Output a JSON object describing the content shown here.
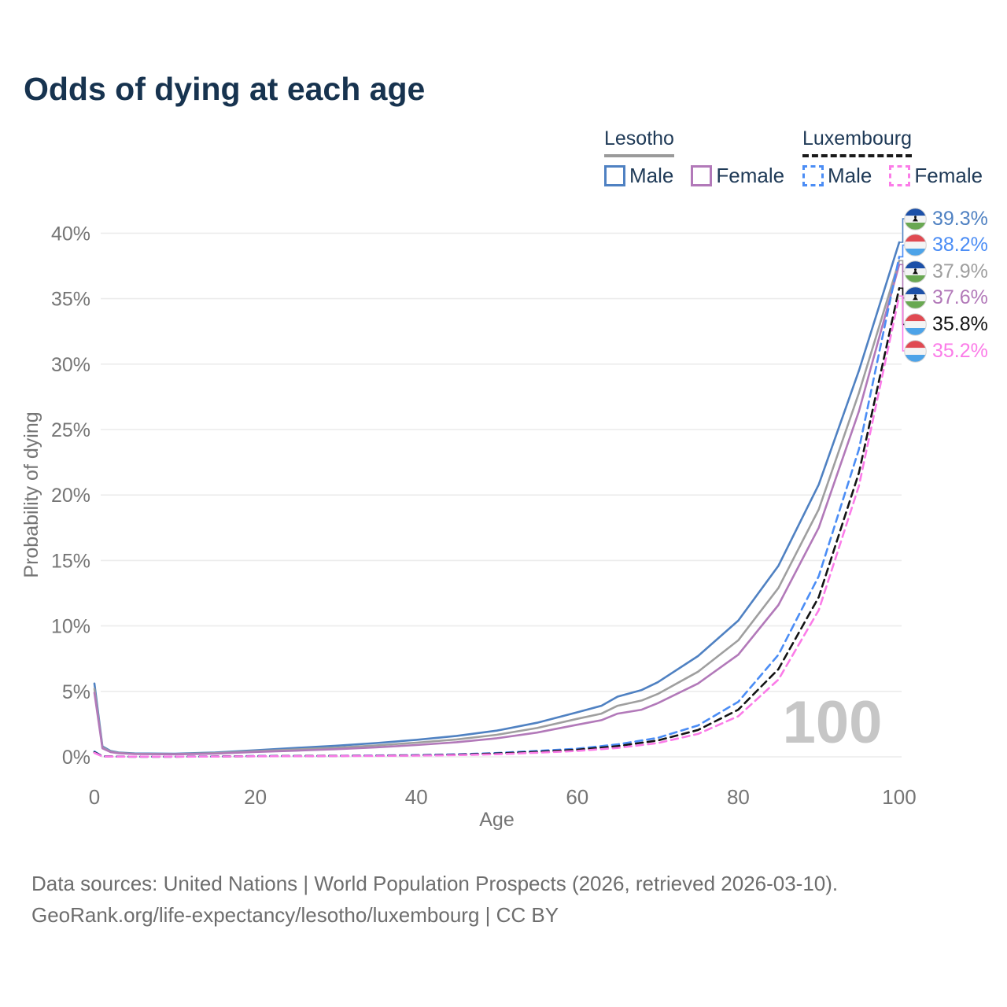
{
  "title": "Odds of dying at each age",
  "legend": {
    "groups": [
      {
        "title": "Lesotho",
        "line_style": "solid",
        "items": [
          {
            "label": "Male",
            "color_key": "lesotho_male"
          },
          {
            "label": "Female",
            "color_key": "lesotho_female"
          }
        ]
      },
      {
        "title": "Luxembourg",
        "line_style": "dashed",
        "items": [
          {
            "label": "Male",
            "color_key": "luxembourg_male"
          },
          {
            "label": "Female",
            "color_key": "luxembourg_female"
          }
        ]
      }
    ]
  },
  "chart_data": {
    "type": "line",
    "title": "Odds of dying at each age",
    "xlabel": "Age",
    "ylabel": "Probability of dying",
    "xlim": [
      0,
      100
    ],
    "ylim": [
      0,
      40
    ],
    "x_ticks": [
      0,
      20,
      40,
      60,
      80,
      100
    ],
    "y_ticks": [
      "0%",
      "5%",
      "10%",
      "15%",
      "20%",
      "25%",
      "30%",
      "35%",
      "40%"
    ],
    "grid": true,
    "legend_position": "top-right",
    "watermark": "100",
    "series": [
      {
        "name": "Lesotho Male",
        "country": "Lesotho",
        "sex": "Male",
        "color": "#4f81c2",
        "dash": false,
        "points": [
          [
            0,
            5.6
          ],
          [
            1,
            0.8
          ],
          [
            2,
            0.45
          ],
          [
            3,
            0.33
          ],
          [
            5,
            0.26
          ],
          [
            10,
            0.24
          ],
          [
            15,
            0.33
          ],
          [
            20,
            0.5
          ],
          [
            25,
            0.68
          ],
          [
            30,
            0.85
          ],
          [
            35,
            1.05
          ],
          [
            40,
            1.3
          ],
          [
            45,
            1.6
          ],
          [
            50,
            2.0
          ],
          [
            55,
            2.6
          ],
          [
            60,
            3.4
          ],
          [
            63,
            3.9
          ],
          [
            65,
            4.6
          ],
          [
            68,
            5.1
          ],
          [
            70,
            5.7
          ],
          [
            75,
            7.7
          ],
          [
            80,
            10.4
          ],
          [
            85,
            14.6
          ],
          [
            90,
            20.8
          ],
          [
            95,
            29.5
          ],
          [
            100,
            39.3
          ]
        ]
      },
      {
        "name": "Lesotho Both sexes",
        "country": "Lesotho",
        "sex": "Both sexes",
        "color": "#9f9f9f",
        "dash": false,
        "points": [
          [
            0,
            5.2
          ],
          [
            1,
            0.72
          ],
          [
            2,
            0.4
          ],
          [
            3,
            0.3
          ],
          [
            5,
            0.23
          ],
          [
            10,
            0.21
          ],
          [
            15,
            0.28
          ],
          [
            20,
            0.43
          ],
          [
            25,
            0.56
          ],
          [
            30,
            0.7
          ],
          [
            35,
            0.87
          ],
          [
            40,
            1.08
          ],
          [
            45,
            1.33
          ],
          [
            50,
            1.68
          ],
          [
            55,
            2.2
          ],
          [
            60,
            2.9
          ],
          [
            63,
            3.3
          ],
          [
            65,
            3.9
          ],
          [
            68,
            4.3
          ],
          [
            70,
            4.8
          ],
          [
            75,
            6.5
          ],
          [
            80,
            8.9
          ],
          [
            85,
            12.9
          ],
          [
            90,
            18.9
          ],
          [
            95,
            27.8
          ],
          [
            100,
            37.9
          ]
        ]
      },
      {
        "name": "Lesotho Female",
        "country": "Lesotho",
        "sex": "Female",
        "color": "#b279b9",
        "dash": false,
        "points": [
          [
            0,
            4.9
          ],
          [
            1,
            0.65
          ],
          [
            2,
            0.36
          ],
          [
            3,
            0.27
          ],
          [
            5,
            0.21
          ],
          [
            10,
            0.19
          ],
          [
            15,
            0.24
          ],
          [
            20,
            0.37
          ],
          [
            25,
            0.47
          ],
          [
            30,
            0.58
          ],
          [
            35,
            0.73
          ],
          [
            40,
            0.9
          ],
          [
            45,
            1.12
          ],
          [
            50,
            1.42
          ],
          [
            55,
            1.85
          ],
          [
            60,
            2.45
          ],
          [
            63,
            2.8
          ],
          [
            65,
            3.3
          ],
          [
            68,
            3.6
          ],
          [
            70,
            4.1
          ],
          [
            75,
            5.6
          ],
          [
            80,
            7.8
          ],
          [
            85,
            11.6
          ],
          [
            90,
            17.5
          ],
          [
            95,
            26.4
          ],
          [
            100,
            37.6
          ]
        ]
      },
      {
        "name": "Luxembourg Male",
        "country": "Luxembourg",
        "sex": "Male",
        "color": "#4b8df5",
        "dash": true,
        "points": [
          [
            0,
            0.4
          ],
          [
            1,
            0.04
          ],
          [
            3,
            0.02
          ],
          [
            5,
            0.015
          ],
          [
            10,
            0.015
          ],
          [
            15,
            0.03
          ],
          [
            20,
            0.06
          ],
          [
            25,
            0.07
          ],
          [
            30,
            0.08
          ],
          [
            35,
            0.1
          ],
          [
            40,
            0.13
          ],
          [
            45,
            0.19
          ],
          [
            50,
            0.29
          ],
          [
            55,
            0.45
          ],
          [
            60,
            0.62
          ],
          [
            65,
            0.95
          ],
          [
            70,
            1.45
          ],
          [
            75,
            2.4
          ],
          [
            80,
            4.2
          ],
          [
            85,
            7.8
          ],
          [
            90,
            13.8
          ],
          [
            95,
            23.5
          ],
          [
            100,
            38.2
          ]
        ]
      },
      {
        "name": "Luxembourg Both sexes",
        "country": "Luxembourg",
        "sex": "Both sexes",
        "color": "#141414",
        "dash": true,
        "points": [
          [
            0,
            0.35
          ],
          [
            1,
            0.035
          ],
          [
            3,
            0.02
          ],
          [
            5,
            0.012
          ],
          [
            10,
            0.012
          ],
          [
            15,
            0.025
          ],
          [
            20,
            0.05
          ],
          [
            25,
            0.06
          ],
          [
            30,
            0.07
          ],
          [
            35,
            0.085
          ],
          [
            40,
            0.11
          ],
          [
            45,
            0.16
          ],
          [
            50,
            0.25
          ],
          [
            55,
            0.38
          ],
          [
            60,
            0.54
          ],
          [
            65,
            0.82
          ],
          [
            70,
            1.25
          ],
          [
            75,
            2.05
          ],
          [
            80,
            3.6
          ],
          [
            85,
            6.7
          ],
          [
            90,
            12.2
          ],
          [
            95,
            21.7
          ],
          [
            100,
            35.8
          ]
        ]
      },
      {
        "name": "Luxembourg Female",
        "country": "Luxembourg",
        "sex": "Female",
        "color": "#fb7ce8",
        "dash": true,
        "points": [
          [
            0,
            0.3
          ],
          [
            1,
            0.03
          ],
          [
            3,
            0.015
          ],
          [
            5,
            0.01
          ],
          [
            10,
            0.01
          ],
          [
            15,
            0.02
          ],
          [
            20,
            0.04
          ],
          [
            25,
            0.05
          ],
          [
            30,
            0.06
          ],
          [
            35,
            0.07
          ],
          [
            40,
            0.09
          ],
          [
            45,
            0.13
          ],
          [
            50,
            0.2
          ],
          [
            55,
            0.31
          ],
          [
            60,
            0.45
          ],
          [
            65,
            0.68
          ],
          [
            70,
            1.05
          ],
          [
            75,
            1.75
          ],
          [
            80,
            3.1
          ],
          [
            85,
            5.9
          ],
          [
            90,
            11.2
          ],
          [
            95,
            20.7
          ],
          [
            100,
            35.2
          ]
        ]
      }
    ],
    "end_labels": [
      {
        "value": "39.3%",
        "series": "Lesotho Male",
        "flag": "lesotho",
        "color": "#4f81c2"
      },
      {
        "value": "38.2%",
        "series": "Luxembourg Male",
        "flag": "luxembourg",
        "color": "#4b8df5"
      },
      {
        "value": "37.9%",
        "series": "Lesotho Both sexes",
        "flag": "lesotho",
        "color": "#9f9f9f"
      },
      {
        "value": "37.6%",
        "series": "Lesotho Female",
        "flag": "lesotho",
        "color": "#b279b9"
      },
      {
        "value": "35.8%",
        "series": "Luxembourg Both sexes",
        "flag": "luxembourg",
        "color": "#141414"
      },
      {
        "value": "35.2%",
        "series": "Luxembourg Female",
        "flag": "luxembourg",
        "color": "#fb7ce8"
      }
    ]
  },
  "colors": {
    "title_text": "#17334f",
    "legend_text": "#1f3a57",
    "axis_text": "#757575",
    "grid": "#ececec",
    "watermark": "#c6c6c6",
    "footer_text": "#6d6d6d",
    "lesotho_male": "#4f81c2",
    "lesotho_female": "#b279b9",
    "lesotho_both": "#9f9f9f",
    "luxembourg_male": "#4b8df5",
    "luxembourg_female": "#fb7ce8",
    "luxembourg_both": "#141414",
    "lesotho_underline": "#9a9a9a",
    "luxembourg_underline": "#1a1a1a"
  },
  "flags": {
    "lesotho": {
      "top": "#1c50a8",
      "mid": "#f4f4f4",
      "bottom": "#69a852",
      "emblem": "#111111"
    },
    "luxembourg": {
      "top": "#e04a52",
      "mid": "#f4f4f4",
      "bottom": "#4da3e8"
    }
  },
  "footer": {
    "line1": "Data sources: United Nations | World Population Prospects (2026, retrieved 2026-03-10).",
    "line2": "GeoRank.org/life-expectancy/lesotho/luxembourg | CC BY"
  }
}
